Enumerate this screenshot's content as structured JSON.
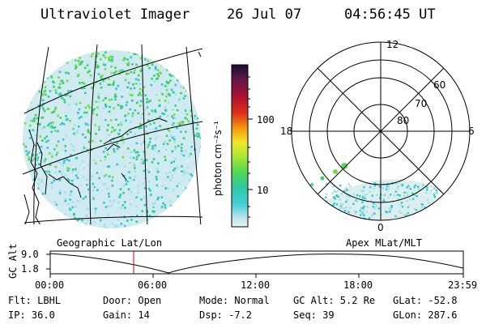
{
  "header": {
    "title": "Ultraviolet Imager",
    "date": "26 Jul 07",
    "time": "04:56:45 UT"
  },
  "colorbar": {
    "unit_label": "photon cm⁻²s⁻¹",
    "ticks": [
      "100",
      "10"
    ],
    "colors": [
      "#2a0a3a",
      "#5a1a4a",
      "#8a1030",
      "#c81818",
      "#e84818",
      "#f5a010",
      "#f0e020",
      "#c0e820",
      "#70e040",
      "#40d060",
      "#30c8a0",
      "#30c8d0",
      "#a0e0e8",
      "#d8eef0"
    ]
  },
  "left_panel": {
    "caption": "Geographic Lat/Lon"
  },
  "right_panel": {
    "caption": "Apex MLat/MLT",
    "mlt_labels": {
      "top": "12",
      "left": "18",
      "right": "6",
      "bottom": "0"
    },
    "lat_labels": [
      "60",
      "70",
      "80"
    ]
  },
  "timeline": {
    "ylabel": "GC Alt",
    "yticks": [
      "9.0",
      "1.8"
    ],
    "xticks": [
      "00:00",
      "06:00",
      "12:00",
      "18:00",
      "23:59"
    ],
    "current_time_marker": "04:56:45"
  },
  "info": {
    "flt": "Flt: LBHL",
    "ip": "IP: 36.0",
    "door": "Door: Open",
    "gain": "Gain: 14",
    "mode": "Mode: Normal",
    "dsp": "Dsp:   -7.2",
    "gcalt": "GC Alt: 5.2 Re",
    "seq": "Seq: 39",
    "glat": "GLat: -52.8",
    "glon": "GLon: 287.6"
  }
}
